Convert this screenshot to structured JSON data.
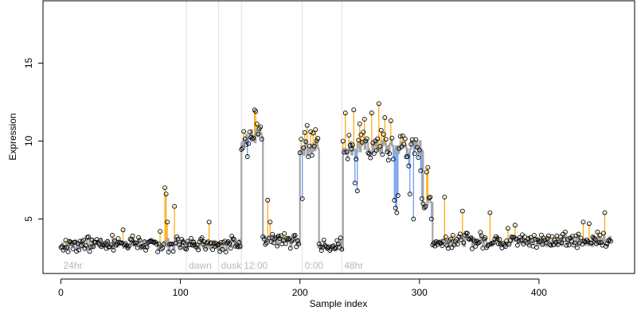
{
  "chart_data": {
    "type": "line",
    "xlabel": "Sample index",
    "ylabel": "Expression",
    "xlim": [
      -15,
      480
    ],
    "ylim": [
      1.5,
      19
    ],
    "x_ticks": [
      0,
      100,
      200,
      300,
      400
    ],
    "y_ticks": [
      5,
      10,
      15
    ],
    "grid": false,
    "colors": {
      "fitted_line": "#a6a6a6",
      "residual_above": "#ffa500",
      "residual_below": "#6495ed",
      "point_stroke": "#000000",
      "period_line": "#e0e0e0",
      "period_label": "#b8b8b8"
    },
    "period_markers": [
      {
        "label": "24hr",
        "x": 0
      },
      {
        "label": "dawn",
        "x": 105
      },
      {
        "label": "dusk",
        "x": 132
      },
      {
        "label": "12:00",
        "x": 151
      },
      {
        "label": "0:00",
        "x": 202
      },
      {
        "label": "48hr",
        "x": 235
      }
    ],
    "segments": [
      {
        "x_start": 0,
        "x_end": 150,
        "baseline": 3.4
      },
      {
        "x_start": 151,
        "x_end": 168,
        "baseline": 10.3
      },
      {
        "x_start": 169,
        "x_end": 199,
        "baseline": 3.6
      },
      {
        "x_start": 200,
        "x_end": 215,
        "baseline": 9.6
      },
      {
        "x_start": 216,
        "x_end": 235,
        "baseline": 3.3
      },
      {
        "x_start": 236,
        "x_end": 302,
        "baseline": 9.6
      },
      {
        "x_start": 303,
        "x_end": 310,
        "baseline": 6.0
      },
      {
        "x_start": 311,
        "x_end": 460,
        "baseline": 3.6
      }
    ],
    "spikes": [
      {
        "x": 52,
        "y": 4.3
      },
      {
        "x": 83,
        "y": 4.2
      },
      {
        "x": 87,
        "y": 7.0
      },
      {
        "x": 88,
        "y": 6.6
      },
      {
        "x": 89,
        "y": 4.8
      },
      {
        "x": 95,
        "y": 5.8
      },
      {
        "x": 124,
        "y": 4.8
      },
      {
        "x": 162,
        "y": 12.0
      },
      {
        "x": 163,
        "y": 11.9
      },
      {
        "x": 175,
        "y": 4.8
      },
      {
        "x": 206,
        "y": 11.0
      },
      {
        "x": 209,
        "y": 10.6
      },
      {
        "x": 238,
        "y": 11.8
      },
      {
        "x": 245,
        "y": 12.0
      },
      {
        "x": 250,
        "y": 11.1
      },
      {
        "x": 254,
        "y": 11.4
      },
      {
        "x": 260,
        "y": 11.8
      },
      {
        "x": 266,
        "y": 12.4
      },
      {
        "x": 271,
        "y": 11.5
      },
      {
        "x": 276,
        "y": 11.3
      },
      {
        "x": 284,
        "y": 10.3
      },
      {
        "x": 287,
        "y": 9.8
      },
      {
        "x": 291,
        "y": 8.4
      },
      {
        "x": 296,
        "y": 9.2
      },
      {
        "x": 301,
        "y": 8.1
      },
      {
        "x": 306,
        "y": 8.0
      },
      {
        "x": 307,
        "y": 8.3
      },
      {
        "x": 321,
        "y": 6.4
      },
      {
        "x": 336,
        "y": 5.5
      },
      {
        "x": 359,
        "y": 5.4
      },
      {
        "x": 374,
        "y": 4.4
      },
      {
        "x": 380,
        "y": 4.6
      },
      {
        "x": 437,
        "y": 4.8
      },
      {
        "x": 442,
        "y": 4.7
      },
      {
        "x": 455,
        "y": 5.4
      }
    ],
    "dips": [
      {
        "x": 156,
        "y": 9.0
      },
      {
        "x": 173,
        "y": 6.2
      },
      {
        "x": 202,
        "y": 6.3
      },
      {
        "x": 246,
        "y": 7.3
      },
      {
        "x": 248,
        "y": 6.8
      },
      {
        "x": 254,
        "y": 8.0
      },
      {
        "x": 262,
        "y": 9.2
      },
      {
        "x": 276,
        "y": 7.8
      },
      {
        "x": 279,
        "y": 6.2
      },
      {
        "x": 280,
        "y": 5.7
      },
      {
        "x": 281,
        "y": 5.4
      },
      {
        "x": 282,
        "y": 6.5
      },
      {
        "x": 292,
        "y": 6.6
      },
      {
        "x": 295,
        "y": 5.0
      },
      {
        "x": 296,
        "y": 3.9
      },
      {
        "x": 302,
        "y": 6.3
      },
      {
        "x": 310,
        "y": 5.0
      }
    ]
  }
}
